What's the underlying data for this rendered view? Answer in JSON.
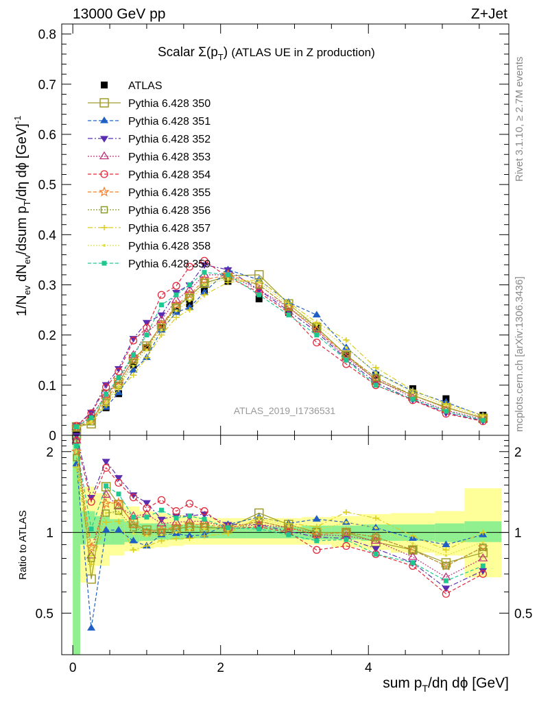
{
  "header": {
    "energy": "13000 GeV pp",
    "process": "Z+Jet"
  },
  "side_text": {
    "rivet": "Rivet 3.1.10, ≥ 2.7M events",
    "mcplots": "mcplots.cern.ch [arXiv:1306.3436]"
  },
  "watermark": "ATLAS_2019_I1736531",
  "colors": {
    "data": "#000000",
    "p350": "#a09b26",
    "p351": "#1f5fc4",
    "p352": "#5a2db0",
    "p353": "#c0307a",
    "p354": "#e0283a",
    "p355": "#f07e2a",
    "p356": "#8a9a2a",
    "p357": "#d8cc20",
    "p358": "#e0e040",
    "p359": "#20c890",
    "band_green": "#90f090",
    "band_yellow": "#ffff99"
  },
  "chart_data": [
    {
      "type": "scatter",
      "panel": "main",
      "title": "Scalar Σ(p_T) (ATLAS UE in Z production)",
      "ylabel": "1/N_ev dN_ev/dsum p_T/dη dϕ [GeV]^-1",
      "xlim": [
        -0.15,
        5.9
      ],
      "ylim": [
        0,
        0.82
      ],
      "xticks": [
        "0",
        "2",
        "4"
      ],
      "yticks": [
        "0",
        "0.1",
        "0.2",
        "0.3",
        "0.4",
        "0.5",
        "0.6",
        "0.7",
        "0.8"
      ],
      "legend_position": "top-left",
      "x": [
        0.05,
        0.25,
        0.45,
        0.62,
        0.82,
        1.0,
        1.2,
        1.4,
        1.58,
        1.78,
        2.1,
        2.52,
        2.92,
        3.3,
        3.7,
        4.1,
        4.6,
        5.05,
        5.55
      ],
      "series": [
        {
          "name": "ATLAS",
          "style": "data",
          "marker": "square-filled",
          "values": [
            0.008,
            0.034,
            0.055,
            0.083,
            0.14,
            0.175,
            0.215,
            0.248,
            0.262,
            0.29,
            0.307,
            0.272,
            0.245,
            0.215,
            0.16,
            0.12,
            0.093,
            0.073,
            0.04
          ]
        },
        {
          "name": "Pythia 6.428 350",
          "style": "solid",
          "marker": "square-open",
          "values": [
            0.017,
            0.023,
            0.082,
            0.105,
            0.152,
            0.178,
            0.22,
            0.255,
            0.278,
            0.303,
            0.318,
            0.32,
            0.262,
            0.215,
            0.16,
            0.11,
            0.08,
            0.056,
            0.034
          ]
        },
        {
          "name": "Pythia 6.428 351",
          "style": "dashed",
          "marker": "triangle-up",
          "values": [
            0.014,
            0.03,
            0.056,
            0.085,
            0.13,
            0.155,
            0.21,
            0.245,
            0.255,
            0.285,
            0.33,
            0.31,
            0.265,
            0.24,
            0.175,
            0.125,
            0.088,
            0.066,
            0.039
          ]
        },
        {
          "name": "Pythia 6.428 352",
          "style": "dashdot",
          "marker": "triangle-down",
          "values": [
            0.019,
            0.046,
            0.101,
            0.133,
            0.193,
            0.225,
            0.24,
            0.285,
            0.3,
            0.34,
            0.33,
            0.29,
            0.248,
            0.206,
            0.152,
            0.105,
            0.071,
            0.045,
            0.029
          ]
        },
        {
          "name": "Pythia 6.428 353",
          "style": "dotted",
          "marker": "triangle-up-open",
          "values": [
            0.017,
            0.038,
            0.081,
            0.11,
            0.16,
            0.205,
            0.23,
            0.27,
            0.29,
            0.32,
            0.32,
            0.29,
            0.255,
            0.21,
            0.155,
            0.112,
            0.075,
            0.05,
            0.032
          ]
        },
        {
          "name": "Pythia 6.428 354",
          "style": "dashed",
          "marker": "circle-open",
          "values": [
            0.019,
            0.044,
            0.096,
            0.127,
            0.189,
            0.214,
            0.28,
            0.298,
            0.336,
            0.348,
            0.315,
            0.285,
            0.245,
            0.185,
            0.142,
            0.1,
            0.07,
            0.043,
            0.028
          ]
        },
        {
          "name": "Pythia 6.428 355",
          "style": "dashed",
          "marker": "star-open",
          "values": [
            0.016,
            0.03,
            0.07,
            0.107,
            0.15,
            0.176,
            0.22,
            0.26,
            0.28,
            0.31,
            0.32,
            0.3,
            0.255,
            0.21,
            0.16,
            0.115,
            0.08,
            0.055,
            0.035
          ]
        },
        {
          "name": "Pythia 6.428 356",
          "style": "dotted",
          "marker": "square-open-small",
          "values": [
            0.015,
            0.027,
            0.065,
            0.1,
            0.145,
            0.175,
            0.215,
            0.255,
            0.275,
            0.305,
            0.315,
            0.3,
            0.255,
            0.215,
            0.16,
            0.115,
            0.08,
            0.055,
            0.035
          ]
        },
        {
          "name": "Pythia 6.428 357",
          "style": "dashdot",
          "marker": "tri",
          "values": [
            0.014,
            0.026,
            0.06,
            0.092,
            0.12,
            0.155,
            0.2,
            0.235,
            0.25,
            0.28,
            0.305,
            0.31,
            0.265,
            0.225,
            0.19,
            0.135,
            0.09,
            0.063,
            0.04
          ]
        },
        {
          "name": "Pythia 6.428 358",
          "style": "dotted",
          "marker": "dot",
          "values": [
            0.016,
            0.028,
            0.065,
            0.098,
            0.138,
            0.17,
            0.21,
            0.248,
            0.268,
            0.3,
            0.312,
            0.305,
            0.26,
            0.22,
            0.175,
            0.125,
            0.085,
            0.06,
            0.037
          ]
        },
        {
          "name": "Pythia 6.428 359",
          "style": "dashed",
          "marker": "square-small",
          "values": [
            0.017,
            0.035,
            0.082,
            0.115,
            0.16,
            0.2,
            0.26,
            0.28,
            0.3,
            0.325,
            0.32,
            0.28,
            0.24,
            0.2,
            0.15,
            0.1,
            0.072,
            0.048,
            0.03
          ]
        }
      ]
    },
    {
      "type": "scatter",
      "panel": "ratio",
      "ylabel": "Ratio to ATLAS",
      "xlabel": "sum p_T/dη dϕ [GeV]",
      "xlim": [
        -0.15,
        5.9
      ],
      "ylim": [
        0.35,
        2.3
      ],
      "yticks": [
        "0.5",
        "1",
        "2"
      ],
      "x": [
        0.05,
        0.25,
        0.45,
        0.62,
        0.82,
        1.0,
        1.2,
        1.4,
        1.58,
        1.78,
        2.1,
        2.52,
        2.92,
        3.3,
        3.7,
        4.1,
        4.6,
        5.05,
        5.55
      ],
      "bands": {
        "edges": [
          0.0,
          0.1,
          0.18,
          0.3,
          0.5,
          0.7,
          0.9,
          1.1,
          1.3,
          1.5,
          1.7,
          1.9,
          2.35,
          2.75,
          3.1,
          3.5,
          3.9,
          4.3,
          4.9,
          5.3,
          5.8
        ],
        "green_lo": [
          0.35,
          0.9,
          0.95,
          0.9,
          0.9,
          0.92,
          0.93,
          0.94,
          0.94,
          0.95,
          0.95,
          0.95,
          0.95,
          0.95,
          0.94,
          0.94,
          0.93,
          0.93,
          0.92,
          0.92
        ],
        "green_hi": [
          2.3,
          1.2,
          1.2,
          1.15,
          1.12,
          1.1,
          1.08,
          1.08,
          1.07,
          1.07,
          1.06,
          1.05,
          1.05,
          1.05,
          1.06,
          1.06,
          1.07,
          1.07,
          1.08,
          1.1
        ],
        "yellow_lo": [
          0.35,
          0.65,
          0.7,
          0.75,
          0.82,
          0.85,
          0.87,
          0.88,
          0.89,
          0.9,
          0.9,
          0.9,
          0.9,
          0.9,
          0.9,
          0.88,
          0.86,
          0.84,
          0.82,
          0.68
        ],
        "yellow_hi": [
          2.3,
          1.48,
          1.48,
          1.4,
          1.3,
          1.25,
          1.2,
          1.18,
          1.16,
          1.15,
          1.14,
          1.13,
          1.13,
          1.13,
          1.14,
          1.15,
          1.17,
          1.18,
          1.2,
          1.46
        ]
      },
      "series": [
        {
          "name": "Pythia 6.428 350",
          "values": [
            2.3,
            0.67,
            1.48,
            1.27,
            1.08,
            1.02,
            1.02,
            1.03,
            1.05,
            1.04,
            1.04,
            1.18,
            1.07,
            1.0,
            1.0,
            0.92,
            0.86,
            0.77,
            0.84
          ]
        },
        {
          "name": "Pythia 6.428 351",
          "values": [
            1.8,
            0.44,
            1.02,
            1.02,
            0.93,
            0.89,
            0.98,
            0.99,
            0.97,
            0.98,
            1.07,
            1.14,
            1.08,
            1.12,
            1.09,
            1.04,
            0.95,
            0.9,
            0.98
          ]
        },
        {
          "name": "Pythia 6.428 352",
          "values": [
            2.3,
            1.35,
            1.84,
            1.6,
            1.38,
            1.29,
            1.12,
            1.15,
            1.15,
            1.17,
            1.07,
            1.07,
            1.01,
            0.96,
            0.95,
            0.87,
            0.77,
            0.62,
            0.72
          ]
        },
        {
          "name": "Pythia 6.428 353",
          "values": [
            2.2,
            0.82,
            1.38,
            1.25,
            1.15,
            1.17,
            1.08,
            1.09,
            1.1,
            1.1,
            1.04,
            1.07,
            1.04,
            0.98,
            0.97,
            0.93,
            0.81,
            0.68,
            0.8
          ]
        },
        {
          "name": "Pythia 6.428 354",
          "values": [
            2.2,
            1.3,
            1.74,
            1.53,
            1.35,
            1.23,
            1.32,
            1.2,
            1.28,
            1.2,
            1.03,
            1.05,
            1.0,
            0.86,
            0.89,
            0.83,
            0.75,
            0.59,
            0.7
          ]
        },
        {
          "name": "Pythia 6.428 355",
          "values": [
            2.0,
            0.88,
            1.28,
            1.29,
            1.07,
            1.0,
            1.02,
            1.05,
            1.07,
            1.07,
            1.04,
            1.1,
            1.04,
            0.98,
            1.0,
            0.96,
            0.86,
            0.75,
            0.88
          ]
        },
        {
          "name": "Pythia 6.428 356",
          "values": [
            1.9,
            0.8,
            1.18,
            1.2,
            1.04,
            1.0,
            1.0,
            1.03,
            1.05,
            1.05,
            1.03,
            1.1,
            1.04,
            1.0,
            1.0,
            0.96,
            0.86,
            0.75,
            0.88
          ]
        },
        {
          "name": "Pythia 6.428 357",
          "values": [
            1.75,
            0.76,
            1.09,
            1.1,
            0.86,
            0.89,
            0.93,
            0.95,
            0.95,
            0.97,
            0.99,
            1.14,
            1.08,
            1.05,
            1.19,
            1.13,
            0.97,
            0.86,
            1.0
          ]
        },
        {
          "name": "Pythia 6.428 358",
          "values": [
            2.0,
            0.82,
            1.18,
            1.18,
            0.99,
            0.97,
            0.98,
            1.0,
            1.02,
            1.03,
            1.02,
            1.12,
            1.06,
            1.02,
            1.09,
            1.04,
            0.91,
            0.82,
            0.92
          ]
        },
        {
          "name": "Pythia 6.428 359",
          "values": [
            2.1,
            1.03,
            1.49,
            1.39,
            1.14,
            1.14,
            1.21,
            1.13,
            1.15,
            1.12,
            1.04,
            1.03,
            0.98,
            0.93,
            0.94,
            0.83,
            0.77,
            0.66,
            0.75
          ]
        }
      ]
    }
  ]
}
